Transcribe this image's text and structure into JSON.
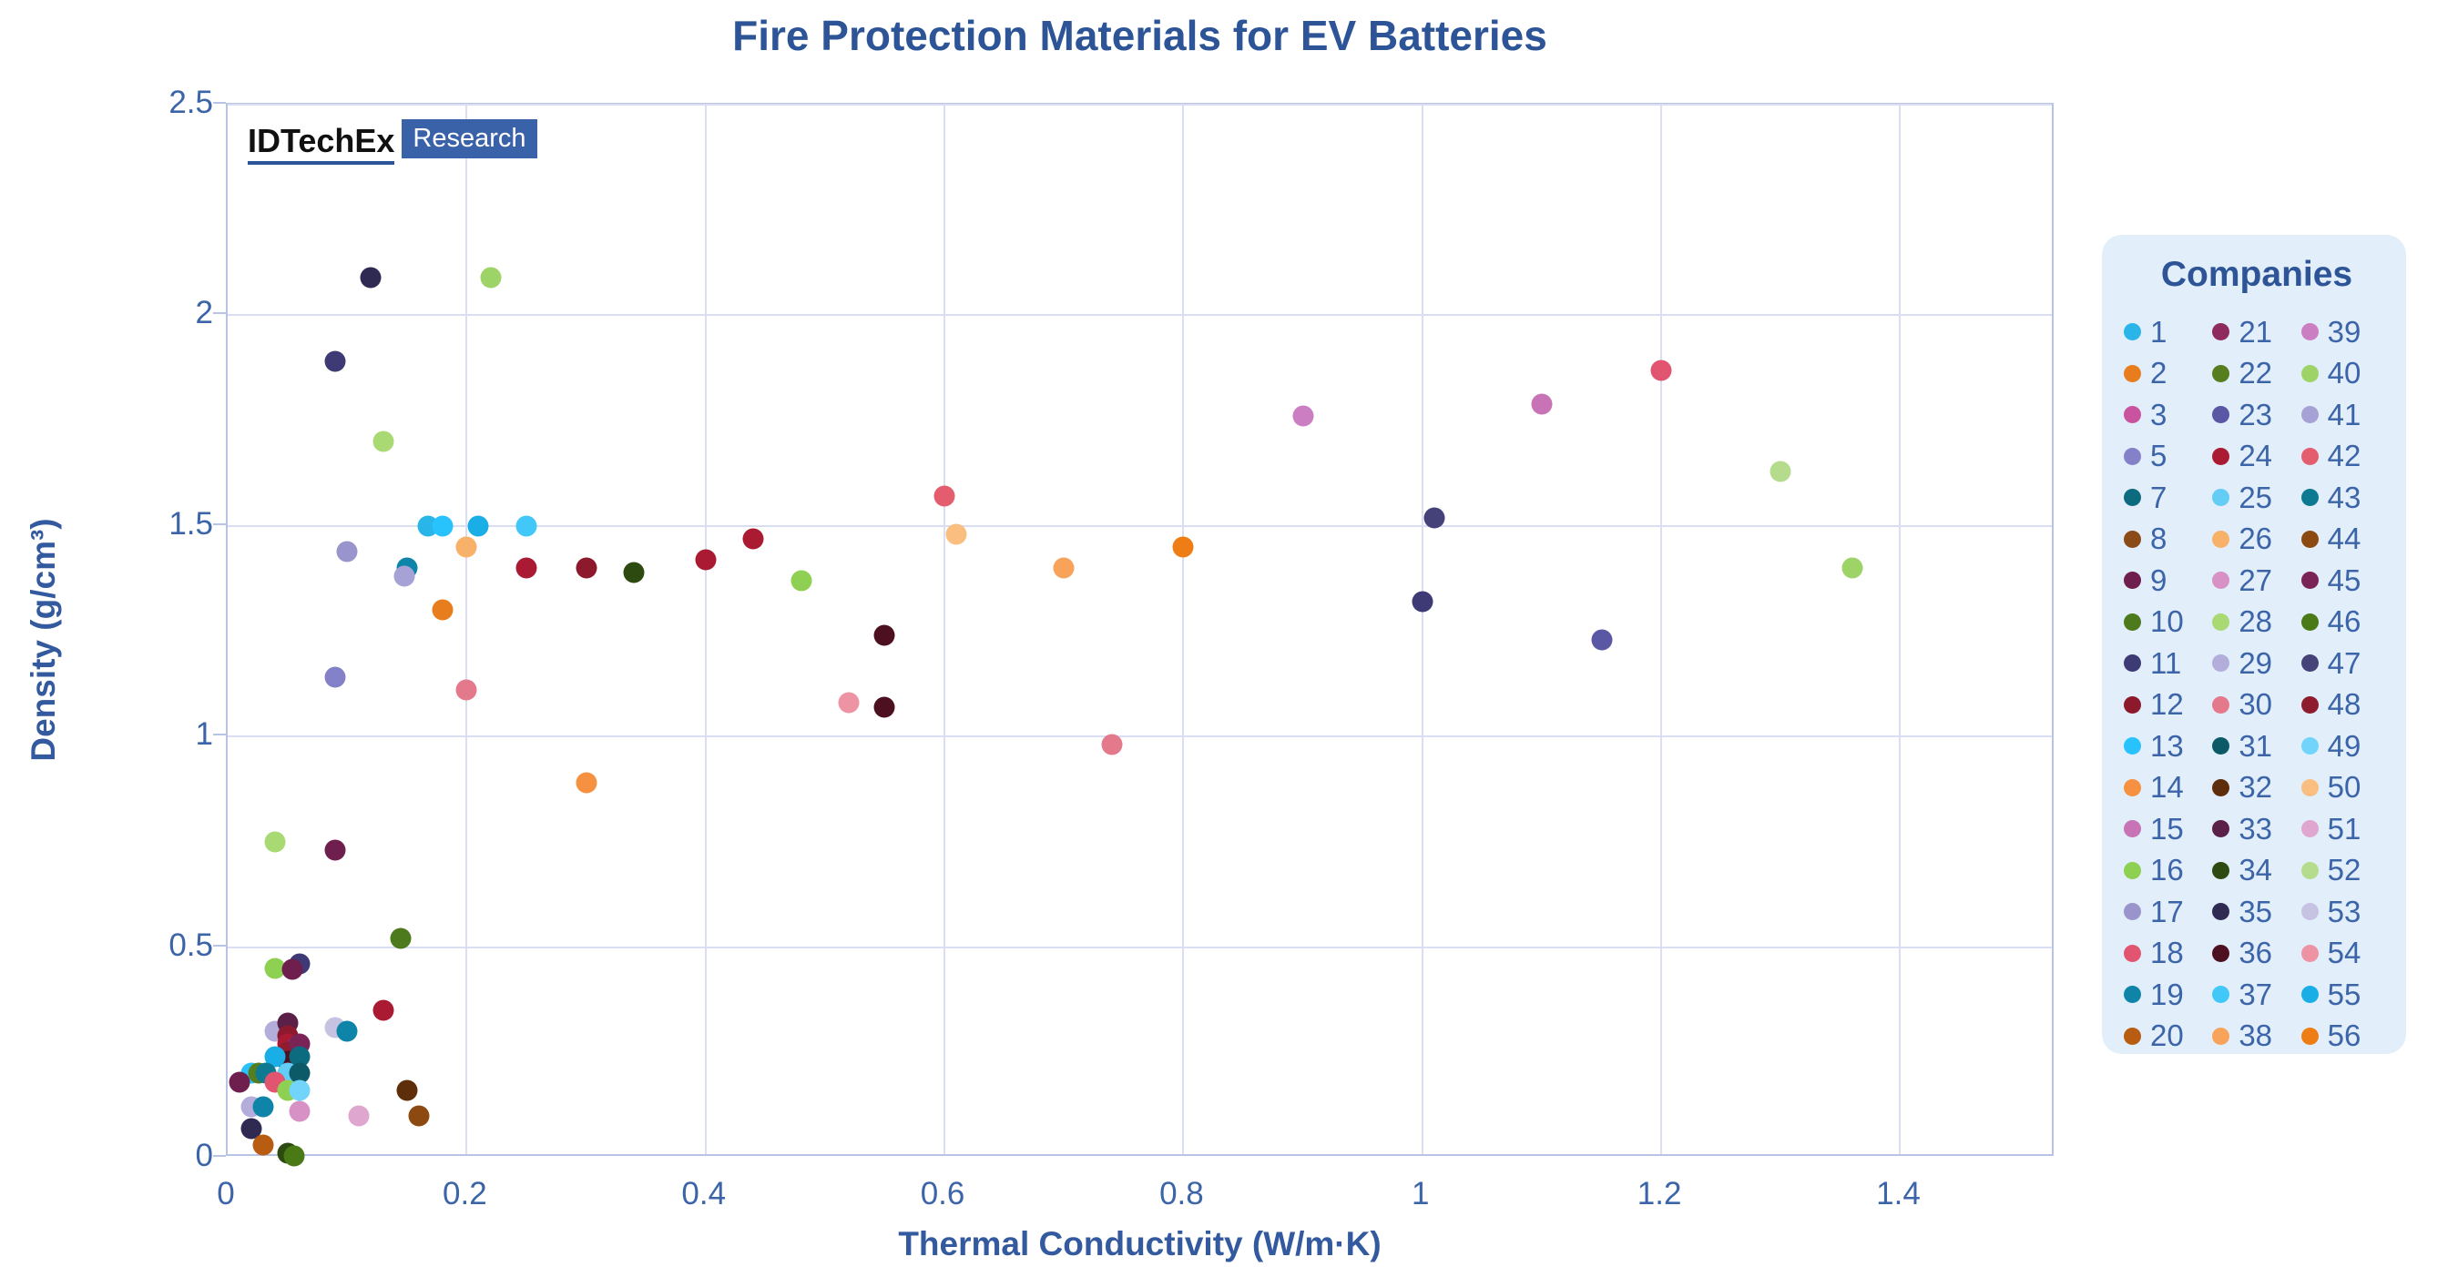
{
  "watermark": {
    "brand": "IDTechEx",
    "tag": "Research"
  },
  "chart_data": {
    "type": "scatter",
    "title": "Fire Protection Materials for EV Batteries",
    "xlabel": "Thermal Conductivity (W/m·K)",
    "ylabel": "Density (g/cm³)",
    "xlim": [
      0,
      1.53
    ],
    "ylim": [
      0,
      2.5
    ],
    "x_ticks": [
      "0",
      "0.2",
      "0.4",
      "0.6",
      "0.8",
      "1",
      "1.2",
      "1.4"
    ],
    "x_tick_values": [
      0,
      0.2,
      0.4,
      0.6,
      0.8,
      1,
      1.2,
      1.4
    ],
    "y_ticks": [
      "0",
      "0.5",
      "1",
      "1.5",
      "2",
      "2.5"
    ],
    "y_tick_values": [
      0,
      0.5,
      1,
      1.5,
      2,
      2.5
    ],
    "grid": true,
    "legend_title": "Companies",
    "legend_position": "right",
    "companies": [
      {
        "id": "1",
        "color": "#29b5e8"
      },
      {
        "id": "2",
        "color": "#e87d1e"
      },
      {
        "id": "3",
        "color": "#c9539e"
      },
      {
        "id": "5",
        "color": "#8581c8"
      },
      {
        "id": "7",
        "color": "#0d6b80"
      },
      {
        "id": "8",
        "color": "#8a4b16"
      },
      {
        "id": "9",
        "color": "#6e1f4e"
      },
      {
        "id": "10",
        "color": "#4c7a1d"
      },
      {
        "id": "11",
        "color": "#3d3a75"
      },
      {
        "id": "12",
        "color": "#8c1a2c"
      },
      {
        "id": "13",
        "color": "#28c2fc"
      },
      {
        "id": "14",
        "color": "#f59140"
      },
      {
        "id": "15",
        "color": "#c873b6"
      },
      {
        "id": "16",
        "color": "#8ed052"
      },
      {
        "id": "17",
        "color": "#9a94cc"
      },
      {
        "id": "18",
        "color": "#e25570"
      },
      {
        "id": "19",
        "color": "#0e85a8"
      },
      {
        "id": "20",
        "color": "#b85c12"
      },
      {
        "id": "21",
        "color": "#8e2a5e"
      },
      {
        "id": "22",
        "color": "#567d1e"
      },
      {
        "id": "23",
        "color": "#5a57a5"
      },
      {
        "id": "24",
        "color": "#aa1a32"
      },
      {
        "id": "25",
        "color": "#63cdf5"
      },
      {
        "id": "26",
        "color": "#f7b168"
      },
      {
        "id": "27",
        "color": "#d791c4"
      },
      {
        "id": "28",
        "color": "#a8d973"
      },
      {
        "id": "29",
        "color": "#b2adda"
      },
      {
        "id": "30",
        "color": "#e5798c"
      },
      {
        "id": "31",
        "color": "#0c5a68"
      },
      {
        "id": "32",
        "color": "#5e2d0a"
      },
      {
        "id": "33",
        "color": "#5a2047"
      },
      {
        "id": "34",
        "color": "#2d4a10"
      },
      {
        "id": "35",
        "color": "#2e2a52"
      },
      {
        "id": "36",
        "color": "#4d1020"
      },
      {
        "id": "37",
        "color": "#42c8f8"
      },
      {
        "id": "38",
        "color": "#f8a359"
      },
      {
        "id": "39",
        "color": "#cc7ec2"
      },
      {
        "id": "40",
        "color": "#9ed368"
      },
      {
        "id": "41",
        "color": "#a7a2d5"
      },
      {
        "id": "42",
        "color": "#e35d6e"
      },
      {
        "id": "43",
        "color": "#0e7a92"
      },
      {
        "id": "44",
        "color": "#8c4a10"
      },
      {
        "id": "45",
        "color": "#7a2357"
      },
      {
        "id": "46",
        "color": "#4a7a15"
      },
      {
        "id": "47",
        "color": "#454179"
      },
      {
        "id": "48",
        "color": "#8e1c2e"
      },
      {
        "id": "49",
        "color": "#72d4fa"
      },
      {
        "id": "50",
        "color": "#f9be80"
      },
      {
        "id": "51",
        "color": "#dfa7d0"
      },
      {
        "id": "52",
        "color": "#b4dc8c"
      },
      {
        "id": "53",
        "color": "#c6c2e2"
      },
      {
        "id": "54",
        "color": "#ee93a3"
      },
      {
        "id": "55",
        "color": "#19aee6"
      },
      {
        "id": "56",
        "color": "#ef7d15"
      }
    ],
    "points": [
      {
        "x": 0.12,
        "y": 2.09,
        "company": "35"
      },
      {
        "x": 0.22,
        "y": 2.09,
        "company": "40"
      },
      {
        "x": 0.09,
        "y": 1.89,
        "company": "11"
      },
      {
        "x": 0.13,
        "y": 1.7,
        "company": "28"
      },
      {
        "x": 0.168,
        "y": 1.5,
        "company": "1"
      },
      {
        "x": 0.18,
        "y": 1.5,
        "company": "13"
      },
      {
        "x": 0.21,
        "y": 1.5,
        "company": "55"
      },
      {
        "x": 0.25,
        "y": 1.5,
        "company": "37"
      },
      {
        "x": 0.2,
        "y": 1.45,
        "company": "26"
      },
      {
        "x": 0.1,
        "y": 1.44,
        "company": "17"
      },
      {
        "x": 0.15,
        "y": 1.4,
        "company": "19"
      },
      {
        "x": 0.148,
        "y": 1.38,
        "company": "41"
      },
      {
        "x": 0.25,
        "y": 1.4,
        "company": "24"
      },
      {
        "x": 0.18,
        "y": 1.3,
        "company": "2"
      },
      {
        "x": 0.2,
        "y": 1.11,
        "company": "30"
      },
      {
        "x": 0.09,
        "y": 1.14,
        "company": "5"
      },
      {
        "x": 0.3,
        "y": 1.4,
        "company": "12"
      },
      {
        "x": 0.34,
        "y": 1.39,
        "company": "34"
      },
      {
        "x": 0.4,
        "y": 1.42,
        "company": "24"
      },
      {
        "x": 0.44,
        "y": 1.47,
        "company": "24"
      },
      {
        "x": 0.48,
        "y": 1.37,
        "company": "16"
      },
      {
        "x": 0.52,
        "y": 1.08,
        "company": "54"
      },
      {
        "x": 0.55,
        "y": 1.24,
        "company": "36"
      },
      {
        "x": 0.55,
        "y": 1.07,
        "company": "36"
      },
      {
        "x": 0.6,
        "y": 1.57,
        "company": "42"
      },
      {
        "x": 0.61,
        "y": 1.48,
        "company": "50"
      },
      {
        "x": 0.3,
        "y": 0.89,
        "company": "14"
      },
      {
        "x": 0.7,
        "y": 1.4,
        "company": "38"
      },
      {
        "x": 0.74,
        "y": 0.98,
        "company": "30"
      },
      {
        "x": 0.8,
        "y": 1.45,
        "company": "56"
      },
      {
        "x": 0.9,
        "y": 1.76,
        "company": "39"
      },
      {
        "x": 1.0,
        "y": 1.32,
        "company": "11"
      },
      {
        "x": 1.01,
        "y": 1.52,
        "company": "47"
      },
      {
        "x": 1.15,
        "y": 1.23,
        "company": "23"
      },
      {
        "x": 1.1,
        "y": 1.79,
        "company": "15"
      },
      {
        "x": 1.2,
        "y": 1.87,
        "company": "18"
      },
      {
        "x": 1.3,
        "y": 1.63,
        "company": "52"
      },
      {
        "x": 1.36,
        "y": 1.4,
        "company": "40"
      },
      {
        "x": 0.13,
        "y": 0.35,
        "company": "24"
      },
      {
        "x": 0.09,
        "y": 0.31,
        "company": "53"
      },
      {
        "x": 0.1,
        "y": 0.3,
        "company": "19"
      },
      {
        "x": 0.04,
        "y": 0.3,
        "company": "29"
      },
      {
        "x": 0.05,
        "y": 0.32,
        "company": "33"
      },
      {
        "x": 0.05,
        "y": 0.29,
        "company": "12"
      },
      {
        "x": 0.05,
        "y": 0.27,
        "company": "24"
      },
      {
        "x": 0.056,
        "y": 0.26,
        "company": "21"
      },
      {
        "x": 0.05,
        "y": 0.25,
        "company": "48"
      },
      {
        "x": 0.05,
        "y": 0.23,
        "company": "36"
      },
      {
        "x": 0.06,
        "y": 0.27,
        "company": "45"
      },
      {
        "x": 0.04,
        "y": 0.24,
        "company": "55"
      },
      {
        "x": 0.06,
        "y": 0.24,
        "company": "7"
      },
      {
        "x": 0.02,
        "y": 0.2,
        "company": "13"
      },
      {
        "x": 0.026,
        "y": 0.2,
        "company": "22"
      },
      {
        "x": 0.032,
        "y": 0.2,
        "company": "43"
      },
      {
        "x": 0.05,
        "y": 0.2,
        "company": "25"
      },
      {
        "x": 0.06,
        "y": 0.2,
        "company": "31"
      },
      {
        "x": 0.04,
        "y": 0.18,
        "company": "18"
      },
      {
        "x": 0.05,
        "y": 0.16,
        "company": "16"
      },
      {
        "x": 0.06,
        "y": 0.16,
        "company": "49"
      },
      {
        "x": 0.02,
        "y": 0.12,
        "company": "29"
      },
      {
        "x": 0.03,
        "y": 0.12,
        "company": "19"
      },
      {
        "x": 0.06,
        "y": 0.11,
        "company": "27"
      },
      {
        "x": 0.11,
        "y": 0.1,
        "company": "51"
      },
      {
        "x": 0.15,
        "y": 0.16,
        "company": "32"
      },
      {
        "x": 0.16,
        "y": 0.1,
        "company": "44"
      },
      {
        "x": 0.02,
        "y": 0.07,
        "company": "35"
      },
      {
        "x": 0.03,
        "y": 0.03,
        "company": "20"
      },
      {
        "x": 0.05,
        "y": 0.01,
        "company": "34"
      },
      {
        "x": 0.056,
        "y": 0.005,
        "company": "46"
      },
      {
        "x": 0.01,
        "y": 0.18,
        "company": "9"
      },
      {
        "x": 0.04,
        "y": 0.45,
        "company": "16"
      },
      {
        "x": 0.06,
        "y": 0.46,
        "company": "11"
      },
      {
        "x": 0.054,
        "y": 0.447,
        "company": "9"
      },
      {
        "x": 0.145,
        "y": 0.52,
        "company": "10"
      },
      {
        "x": 0.09,
        "y": 0.73,
        "company": "9"
      },
      {
        "x": 0.04,
        "y": 0.75,
        "company": "28"
      }
    ]
  }
}
